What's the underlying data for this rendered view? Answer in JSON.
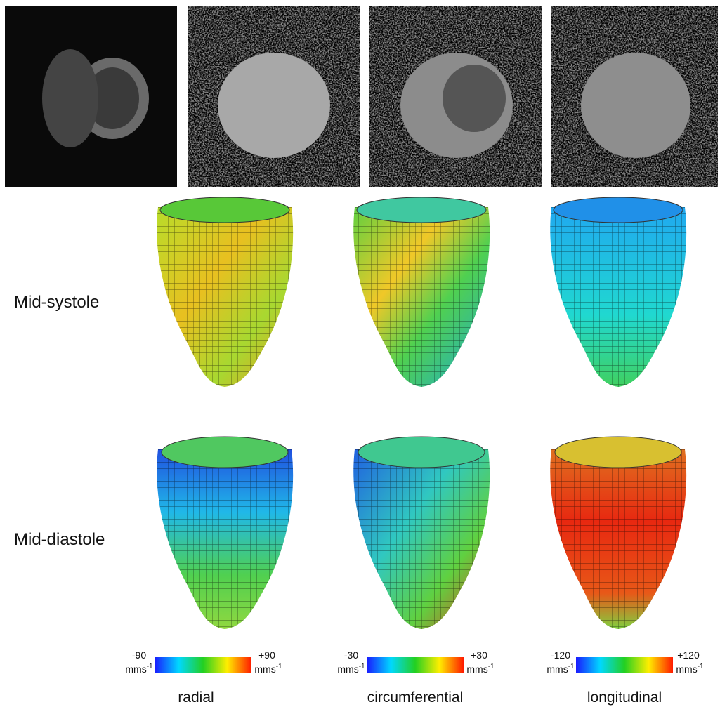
{
  "row_labels": [
    "Mid-systole",
    "Mid-diastole"
  ],
  "colorbars": [
    {
      "min": "-90",
      "max": "+90",
      "unit_base": "mms",
      "unit_exp": "-1",
      "label": "radial"
    },
    {
      "min": "-30",
      "max": "+30",
      "unit_base": "mms",
      "unit_exp": "-1",
      "label": "circumferential"
    },
    {
      "min": "-120",
      "max": "+120",
      "unit_base": "mms",
      "unit_exp": "-1",
      "label": "longitudinal"
    }
  ]
}
